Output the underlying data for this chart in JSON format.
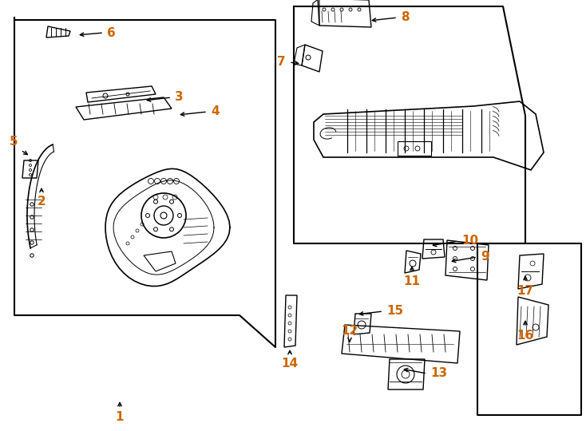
{
  "bg_color": "#ffffff",
  "line_color": "#000000",
  "label_color": "#cc6600",
  "label_fontsize": 11
}
